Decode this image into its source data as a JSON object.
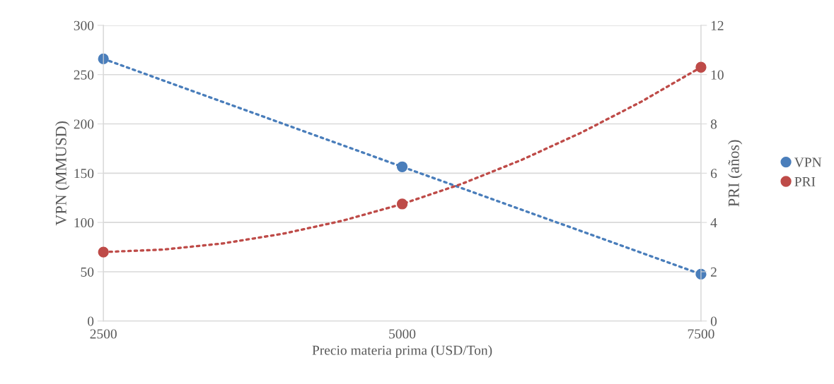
{
  "chart_data": {
    "type": "scatter",
    "xlabel": "Precio materia prima (USD/Ton)",
    "ylabel": "VPN (MMUSD)",
    "y2label": "PRI (años)",
    "x": [
      2500,
      5000,
      7500
    ],
    "series": [
      {
        "type": "line",
        "marker": "none",
        "color": "#4a7ebb",
        "x": [
          2500,
          5000,
          7500
        ],
        "values": [
          266,
          156.5,
          47.5
        ]
      },
      {
        "type": "line",
        "marker": "none",
        "color": "#be4b48",
        "x": [
          2500,
          3000,
          3500,
          4000,
          4500,
          5000,
          5500,
          6000,
          6500,
          7000,
          7500
        ],
        "values": [
          2.8,
          2.9,
          3.15,
          3.54,
          4.07,
          4.75,
          5.57,
          6.54,
          7.65,
          8.9,
          10.3
        ],
        "axis": "y2"
      },
      {
        "name": "VPN",
        "color": "#4a7ebb",
        "values": [
          266,
          156.5,
          47.5
        ]
      },
      {
        "name": "PRI",
        "color": "#be4b48",
        "values": [
          2.8,
          4.75,
          10.3
        ],
        "axis": "y2"
      }
    ],
    "xlim": [
      2500,
      7500
    ],
    "xticks": [
      2500,
      5000,
      7500
    ],
    "ylim": [
      0,
      300
    ],
    "yticks": [
      0,
      50,
      100,
      150,
      200,
      250,
      300
    ],
    "y2lim": [
      0,
      12
    ],
    "y2ticks": [
      0,
      2,
      4,
      6,
      8,
      10,
      12
    ],
    "grid": "y",
    "legend": "right",
    "marker": "circle",
    "line_style": "dotted"
  }
}
